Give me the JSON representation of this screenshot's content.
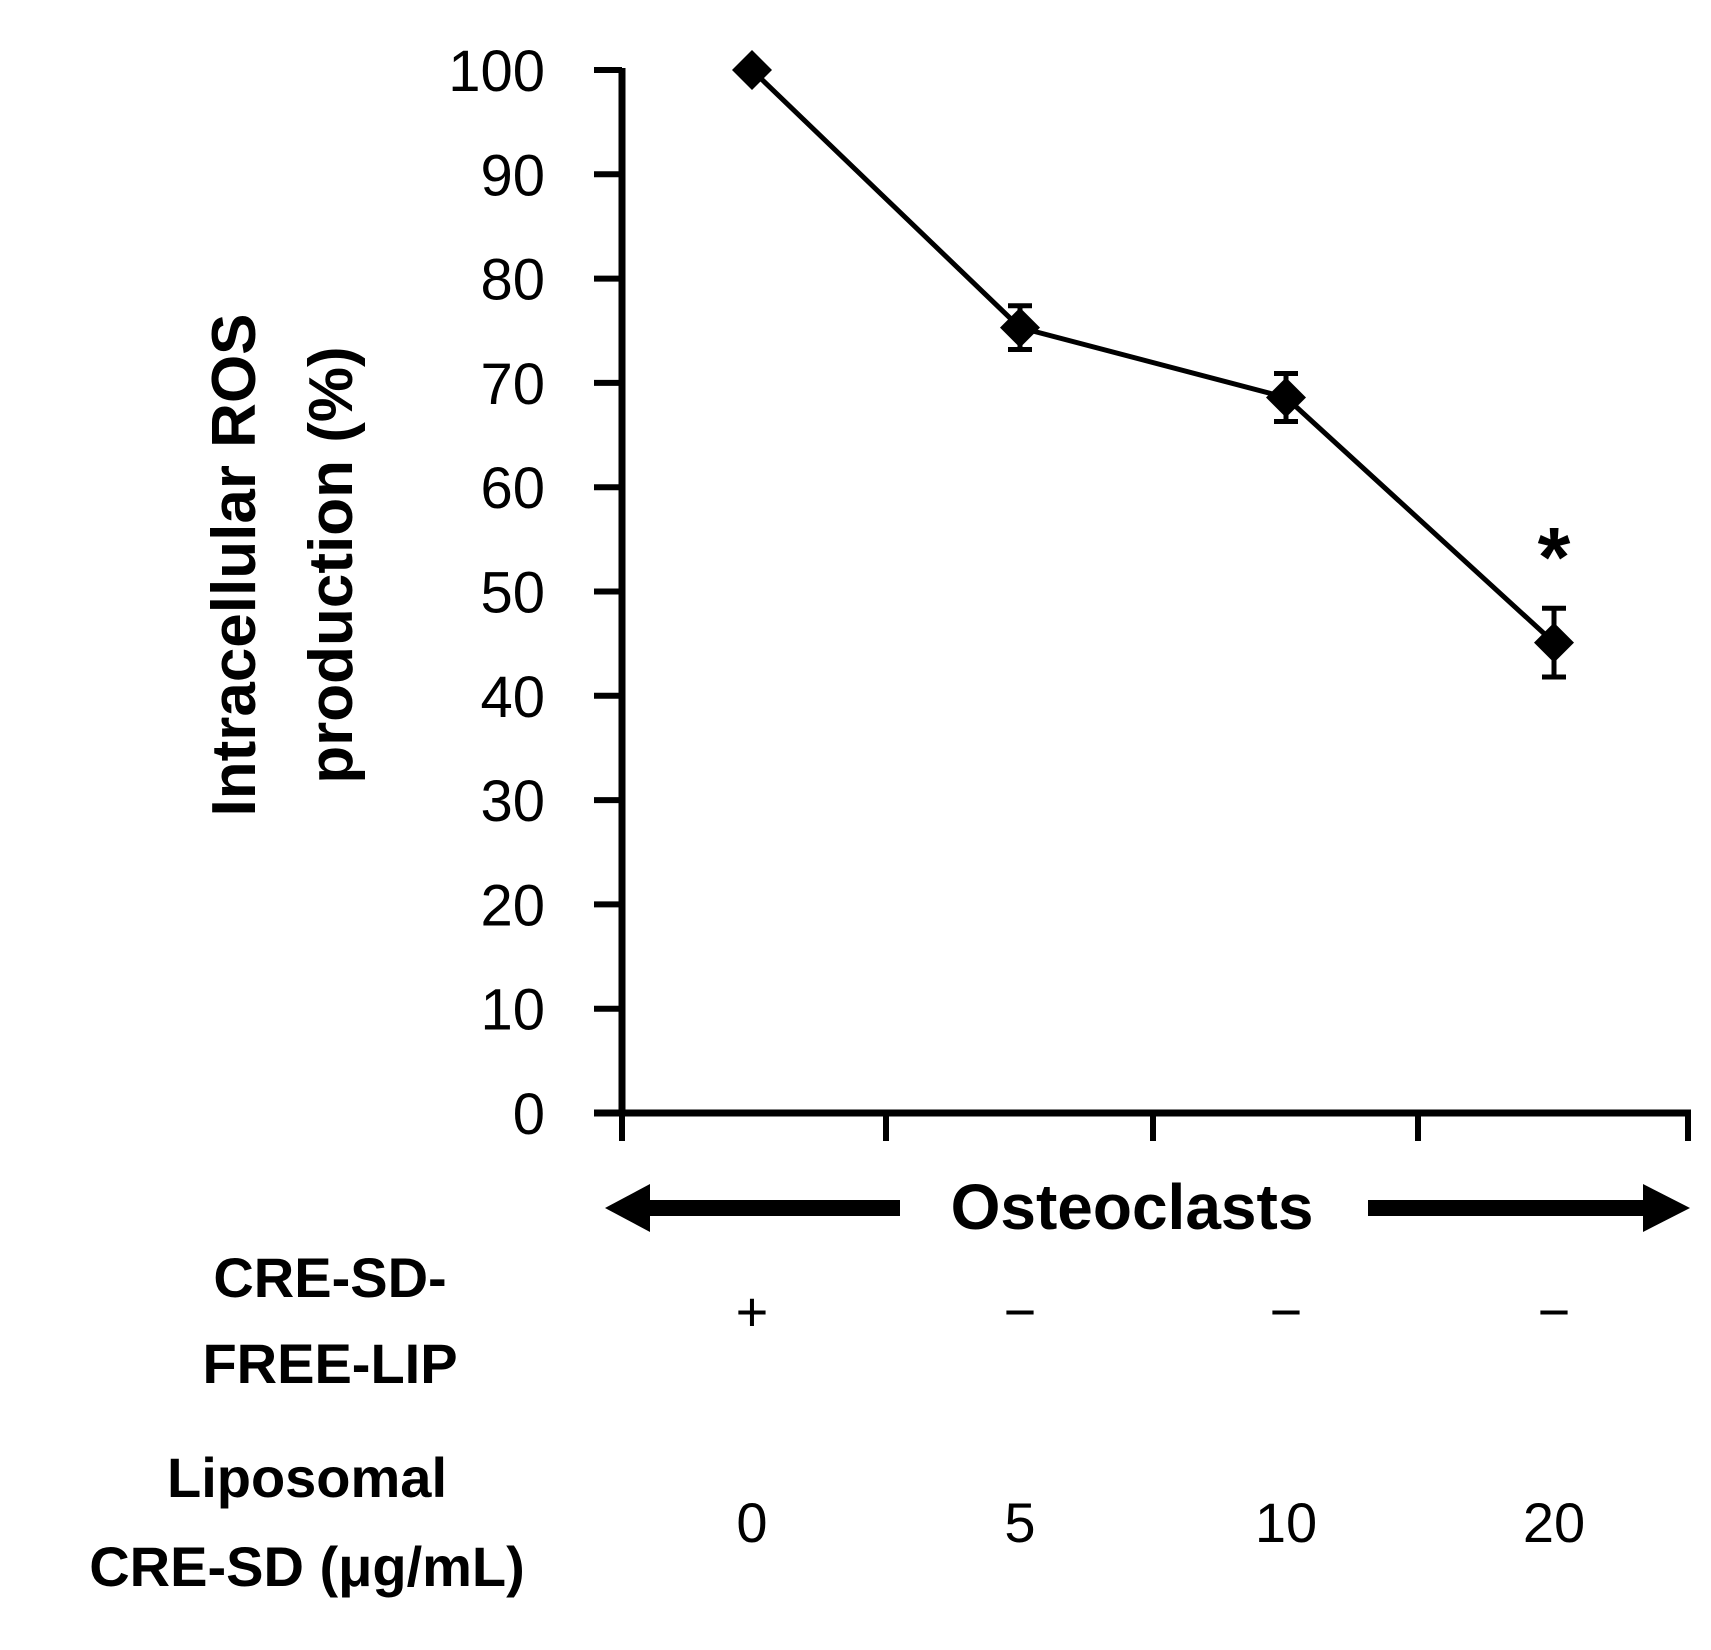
{
  "chart_data": {
    "type": "line",
    "x": [
      1,
      2,
      3,
      4
    ],
    "ylabel_lines": [
      "Intracellular ROS",
      "production (%)"
    ],
    "ylim": [
      0,
      100
    ],
    "yticks": [
      "0",
      "10",
      "20",
      "30",
      "40",
      "50",
      "60",
      "70",
      "80",
      "90",
      "100"
    ],
    "series": [
      {
        "values": [
          100,
          75.3,
          68.6,
          45.1
        ],
        "errors": [
          0,
          2.1,
          2.3,
          3.3
        ]
      }
    ],
    "annotations": [
      {
        "point": 3,
        "text": "*"
      }
    ],
    "group_banner": "Osteoclasts",
    "condition_rows": [
      {
        "label_lines": [
          "CRE-SD-",
          "FREE-LIP"
        ],
        "values": [
          "+",
          "−",
          "−",
          "−"
        ]
      },
      {
        "label_lines": [
          "Liposomal",
          "CRE-SD (μg/mL)"
        ],
        "values": [
          "0",
          "5",
          "10",
          "20"
        ]
      }
    ],
    "grid": false,
    "legend": "none",
    "colors": {
      "line": "#000000",
      "marker": "#000000",
      "axis": "#000000"
    }
  }
}
